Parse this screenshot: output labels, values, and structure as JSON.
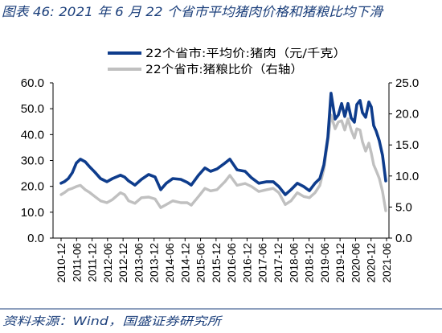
{
  "title": "图表 46:  2021 年 6 月 22 个省市平均猪肉价格和猪粮比均下滑",
  "source": "资料来源：Wind，国盛证券研究所",
  "colors": {
    "title": "#1b3f7b",
    "pork_price": "#0e3c8c",
    "hog_grain_ratio": "#c0c0c0"
  },
  "chart_data": {
    "type": "line",
    "legend": {
      "position": "top-center"
    },
    "grid": false,
    "x_ticks": [
      "2010-12",
      "2011-06",
      "2011-12",
      "2012-06",
      "2012-12",
      "2013-06",
      "2013-12",
      "2014-06",
      "2014-12",
      "2015-06",
      "2015-12",
      "2016-06",
      "2016-12",
      "2017-06",
      "2017-12",
      "2018-06",
      "2018-12",
      "2019-06",
      "2019-12",
      "2020-06",
      "2020-12",
      "2021-06"
    ],
    "y_left": {
      "range": [
        0,
        60
      ],
      "ticks": [
        "0.0",
        "10.0",
        "20.0",
        "30.0",
        "40.0",
        "50.0",
        "60.0"
      ]
    },
    "y_right": {
      "range": [
        0,
        25
      ],
      "ticks": [
        "0.0",
        "5.0",
        "10.0",
        "15.0",
        "20.0",
        "25.0"
      ]
    },
    "x": [
      "2010-12-01",
      "2011-01-08",
      "2011-02-25",
      "2011-04-11",
      "2011-05-28",
      "2011-07-15",
      "2011-09-11",
      "2011-11-07",
      "2012-01-03",
      "2012-03-09",
      "2012-05-23",
      "2012-07-28",
      "2012-11-01",
      "2012-12-18",
      "2013-02-05",
      "2013-04-19",
      "2013-07-04",
      "2013-09-28",
      "2013-12-13",
      "2014-02-18",
      "2014-04-23",
      "2014-07-08",
      "2014-10-12",
      "2014-12-26",
      "2015-02-13",
      "2015-05-07",
      "2015-07-22",
      "2015-09-27",
      "2015-12-12",
      "2016-03-15",
      "2016-05-11",
      "2016-08-05",
      "2016-11-08",
      "2017-01-23",
      "2017-04-17",
      "2017-07-20",
      "2017-10-05",
      "2017-12-10",
      "2018-02-25",
      "2018-05-01",
      "2018-07-15",
      "2018-09-30",
      "2018-12-05",
      "2019-02-10",
      "2019-04-06",
      "2019-05-23",
      "2019-07-10",
      "2019-08-16",
      "2019-10-04",
      "2019-11-11",
      "2019-12-19",
      "2020-01-26",
      "2020-03-03",
      "2020-04-10",
      "2020-05-18",
      "2020-06-16",
      "2020-07-23",
      "2020-08-21",
      "2020-09-28",
      "2020-11-06",
      "2020-12-04",
      "2021-01-02",
      "2021-01-30",
      "2021-03-07",
      "2021-04-14",
      "2021-05-22"
    ],
    "series": [
      {
        "name": "22个省市:平均价:猪肉（元/千克）",
        "axis": "left",
        "color": "#0e3c8c",
        "values": [
          21.2,
          21.8,
          23.0,
          25.2,
          29.0,
          30.5,
          29.5,
          27.4,
          25.5,
          23.0,
          21.8,
          23.0,
          24.3,
          23.6,
          22.1,
          20.5,
          22.7,
          24.6,
          23.6,
          18.7,
          21.2,
          23.0,
          22.7,
          21.5,
          20.5,
          24.3,
          27.1,
          25.8,
          26.7,
          29.0,
          30.5,
          26.4,
          25.8,
          23.3,
          21.2,
          21.8,
          21.8,
          19.9,
          16.8,
          18.7,
          21.2,
          19.9,
          18.3,
          21.2,
          23.0,
          28.3,
          39.0,
          56.0,
          46.0,
          47.6,
          52.0,
          47.0,
          52.0,
          46.4,
          44.8,
          51.6,
          53.2,
          48.5,
          46.7,
          52.6,
          50.7,
          43.5,
          41.4,
          37.6,
          32.0,
          22.1
        ]
      },
      {
        "name": "22个省市:猪粮比价（右轴）",
        "axis": "right",
        "color": "#c0c0c0",
        "values": [
          7.0,
          7.3,
          7.8,
          8.0,
          8.3,
          8.5,
          7.8,
          7.3,
          6.7,
          6.0,
          5.7,
          6.2,
          7.3,
          7.0,
          6.0,
          5.6,
          6.5,
          6.6,
          6.3,
          4.9,
          5.4,
          6.0,
          5.7,
          5.7,
          5.3,
          6.7,
          8.0,
          7.6,
          7.8,
          9.1,
          10.1,
          8.5,
          8.8,
          8.3,
          7.5,
          7.8,
          8.0,
          7.3,
          5.4,
          6.0,
          7.3,
          6.7,
          6.5,
          7.3,
          8.5,
          11.1,
          15.7,
          19.8,
          17.6,
          18.7,
          18.9,
          17.4,
          19.2,
          17.4,
          16.1,
          17.6,
          17.4,
          15.5,
          14.0,
          15.3,
          13.7,
          11.8,
          10.9,
          9.6,
          7.5,
          4.4
        ]
      }
    ]
  }
}
